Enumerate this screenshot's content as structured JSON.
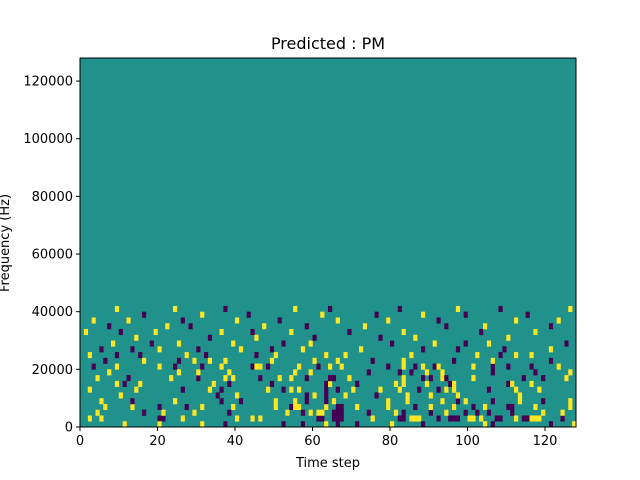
{
  "chart_data": {
    "type": "heatmap",
    "title": "Predicted : PM",
    "xlabel": "Time step",
    "ylabel": "Frequency (Hz)",
    "xlim": [
      0,
      128
    ],
    "ylim": [
      0,
      128000
    ],
    "x_ticks": [
      0,
      20,
      40,
      60,
      80,
      100,
      120
    ],
    "y_ticks": [
      0,
      20000,
      40000,
      60000,
      80000,
      100000,
      120000
    ],
    "n_time_steps": 128,
    "n_freq_bins": 64,
    "classes": [
      {
        "value": 0,
        "color": "#440154"
      },
      {
        "value": 1,
        "color": "#21918c"
      },
      {
        "value": 2,
        "color": "#fde725"
      }
    ],
    "background_value": 1,
    "cells": [
      [
        2,
        1,
        0
      ],
      [
        2,
        1,
        2
      ],
      [
        5,
        1,
        2
      ],
      [
        21,
        1,
        0
      ],
      [
        20,
        1,
        0
      ],
      [
        26,
        1,
        2
      ],
      [
        40,
        1,
        2
      ],
      [
        44,
        1,
        2
      ],
      [
        46,
        1,
        2
      ],
      [
        61,
        1,
        0
      ],
      [
        62,
        1,
        0
      ],
      [
        65,
        1,
        0
      ],
      [
        66,
        1,
        0
      ],
      [
        67,
        1,
        0
      ],
      [
        75,
        1,
        2
      ],
      [
        82,
        1,
        0
      ],
      [
        83,
        1,
        0
      ],
      [
        85,
        1,
        2
      ],
      [
        86,
        1,
        2
      ],
      [
        87,
        1,
        2
      ],
      [
        92,
        1,
        0
      ],
      [
        95,
        1,
        0
      ],
      [
        96,
        1,
        0
      ],
      [
        97,
        1,
        0
      ],
      [
        100,
        1,
        2
      ],
      [
        101,
        1,
        2
      ],
      [
        103,
        1,
        2
      ],
      [
        107,
        1,
        0
      ],
      [
        108,
        1,
        0
      ],
      [
        112,
        1,
        2
      ],
      [
        114,
        1,
        0
      ],
      [
        115,
        1,
        0
      ],
      [
        116,
        1,
        2
      ],
      [
        117,
        1,
        2
      ],
      [
        118,
        1,
        2
      ],
      [
        124,
        1,
        0
      ],
      [
        11,
        0,
        2
      ],
      [
        20,
        0,
        2
      ],
      [
        31,
        0,
        2
      ],
      [
        37,
        0,
        0
      ],
      [
        52,
        0,
        0
      ],
      [
        57,
        0,
        0
      ],
      [
        63,
        0,
        2
      ],
      [
        66,
        0,
        0
      ],
      [
        71,
        0,
        0
      ],
      [
        80,
        0,
        2
      ],
      [
        88,
        0,
        0
      ],
      [
        104,
        0,
        2
      ],
      [
        106,
        0,
        0
      ],
      [
        121,
        0,
        0
      ],
      [
        127,
        0,
        2
      ],
      [
        4,
        2,
        2
      ],
      [
        16,
        2,
        0
      ],
      [
        21,
        2,
        2
      ],
      [
        29,
        2,
        2
      ],
      [
        38,
        2,
        0
      ],
      [
        53,
        2,
        2
      ],
      [
        57,
        2,
        0
      ],
      [
        59,
        2,
        2
      ],
      [
        61,
        2,
        2
      ],
      [
        62,
        2,
        2
      ],
      [
        65,
        2,
        0
      ],
      [
        66,
        2,
        0
      ],
      [
        67,
        2,
        0
      ],
      [
        74,
        2,
        0
      ],
      [
        81,
        2,
        2
      ],
      [
        83,
        2,
        0
      ],
      [
        90,
        2,
        0
      ],
      [
        94,
        2,
        2
      ],
      [
        99,
        2,
        0
      ],
      [
        102,
        2,
        0
      ],
      [
        105,
        2,
        0
      ],
      [
        111,
        2,
        0
      ],
      [
        119,
        2,
        2
      ],
      [
        124,
        2,
        2
      ],
      [
        6,
        3,
        2
      ],
      [
        13,
        3,
        2
      ],
      [
        20,
        3,
        0
      ],
      [
        27,
        3,
        0
      ],
      [
        31,
        3,
        2
      ],
      [
        39,
        3,
        2
      ],
      [
        50,
        3,
        2
      ],
      [
        54,
        3,
        0
      ],
      [
        55,
        3,
        2
      ],
      [
        56,
        3,
        2
      ],
      [
        63,
        3,
        2
      ],
      [
        66,
        3,
        0
      ],
      [
        67,
        3,
        0
      ],
      [
        71,
        3,
        2
      ],
      [
        79,
        3,
        2
      ],
      [
        86,
        3,
        0
      ],
      [
        90,
        3,
        2
      ],
      [
        96,
        3,
        2
      ],
      [
        101,
        3,
        0
      ],
      [
        104,
        3,
        2
      ],
      [
        110,
        3,
        0
      ],
      [
        111,
        3,
        0
      ],
      [
        117,
        3,
        2
      ],
      [
        126,
        3,
        2
      ],
      [
        5,
        4,
        2
      ],
      [
        13,
        4,
        0
      ],
      [
        24,
        4,
        2
      ],
      [
        36,
        4,
        0
      ],
      [
        41,
        4,
        0
      ],
      [
        50,
        4,
        2
      ],
      [
        55,
        4,
        2
      ],
      [
        58,
        4,
        0
      ],
      [
        63,
        4,
        0
      ],
      [
        65,
        4,
        2
      ],
      [
        79,
        4,
        2
      ],
      [
        84,
        4,
        2
      ],
      [
        93,
        4,
        2
      ],
      [
        97,
        4,
        0
      ],
      [
        99,
        4,
        2
      ],
      [
        106,
        4,
        0
      ],
      [
        113,
        4,
        2
      ],
      [
        119,
        4,
        0
      ],
      [
        126,
        4,
        2
      ],
      [
        10,
        5,
        2
      ],
      [
        35,
        5,
        0
      ],
      [
        40,
        5,
        2
      ],
      [
        58,
        5,
        0
      ],
      [
        60,
        5,
        2
      ],
      [
        63,
        5,
        0
      ],
      [
        68,
        5,
        2
      ],
      [
        76,
        5,
        0
      ],
      [
        84,
        5,
        2
      ],
      [
        90,
        5,
        2
      ],
      [
        97,
        5,
        2
      ],
      [
        113,
        5,
        2
      ],
      [
        2,
        6,
        2
      ],
      [
        14,
        6,
        2
      ],
      [
        26,
        6,
        0
      ],
      [
        33,
        6,
        2
      ],
      [
        36,
        6,
        0
      ],
      [
        48,
        6,
        2
      ],
      [
        52,
        6,
        0
      ],
      [
        54,
        6,
        2
      ],
      [
        56,
        6,
        2
      ],
      [
        63,
        6,
        0
      ],
      [
        66,
        6,
        0
      ],
      [
        70,
        6,
        2
      ],
      [
        77,
        6,
        2
      ],
      [
        82,
        6,
        2
      ],
      [
        87,
        6,
        0
      ],
      [
        92,
        6,
        0
      ],
      [
        94,
        6,
        2
      ],
      [
        96,
        6,
        2
      ],
      [
        105,
        6,
        0
      ],
      [
        112,
        6,
        2
      ],
      [
        118,
        6,
        2
      ],
      [
        9,
        7,
        2
      ],
      [
        11,
        7,
        0
      ],
      [
        15,
        7,
        2
      ],
      [
        34,
        7,
        2
      ],
      [
        38,
        7,
        0
      ],
      [
        49,
        7,
        0
      ],
      [
        63,
        7,
        0
      ],
      [
        64,
        7,
        2
      ],
      [
        71,
        7,
        0
      ],
      [
        81,
        7,
        2
      ],
      [
        83,
        7,
        2
      ],
      [
        89,
        7,
        2
      ],
      [
        95,
        7,
        0
      ],
      [
        96,
        7,
        2
      ],
      [
        110,
        7,
        0
      ],
      [
        111,
        7,
        2
      ],
      [
        116,
        7,
        2
      ],
      [
        4,
        8,
        2
      ],
      [
        12,
        8,
        0
      ],
      [
        23,
        8,
        2
      ],
      [
        30,
        8,
        0
      ],
      [
        37,
        8,
        2
      ],
      [
        39,
        8,
        2
      ],
      [
        46,
        8,
        0
      ],
      [
        51,
        8,
        2
      ],
      [
        54,
        8,
        2
      ],
      [
        58,
        8,
        0
      ],
      [
        64,
        8,
        0
      ],
      [
        65,
        8,
        0
      ],
      [
        69,
        8,
        2
      ],
      [
        83,
        8,
        2
      ],
      [
        88,
        8,
        0
      ],
      [
        90,
        8,
        0
      ],
      [
        93,
        8,
        2
      ],
      [
        94,
        8,
        0
      ],
      [
        101,
        8,
        2
      ],
      [
        114,
        8,
        0
      ],
      [
        119,
        8,
        0
      ],
      [
        125,
        8,
        2
      ],
      [
        7,
        9,
        2
      ],
      [
        25,
        9,
        2
      ],
      [
        30,
        9,
        2
      ],
      [
        38,
        9,
        2
      ],
      [
        55,
        9,
        2
      ],
      [
        59,
        9,
        2
      ],
      [
        74,
        9,
        0
      ],
      [
        82,
        9,
        0
      ],
      [
        85,
        9,
        0
      ],
      [
        89,
        9,
        2
      ],
      [
        93,
        9,
        2
      ],
      [
        106,
        9,
        0
      ],
      [
        117,
        9,
        0
      ],
      [
        126,
        9,
        2
      ],
      [
        3,
        10,
        0
      ],
      [
        9,
        10,
        2
      ],
      [
        20,
        10,
        2
      ],
      [
        24,
        10,
        0
      ],
      [
        31,
        10,
        0
      ],
      [
        36,
        10,
        2
      ],
      [
        44,
        10,
        0
      ],
      [
        45,
        10,
        2
      ],
      [
        46,
        10,
        2
      ],
      [
        48,
        10,
        0
      ],
      [
        56,
        10,
        2
      ],
      [
        61,
        10,
        0
      ],
      [
        64,
        10,
        2
      ],
      [
        67,
        10,
        2
      ],
      [
        79,
        10,
        0
      ],
      [
        83,
        10,
        2
      ],
      [
        86,
        10,
        0
      ],
      [
        88,
        10,
        2
      ],
      [
        91,
        10,
        0
      ],
      [
        92,
        10,
        2
      ],
      [
        101,
        10,
        2
      ],
      [
        106,
        10,
        0
      ],
      [
        110,
        10,
        0
      ],
      [
        116,
        10,
        0
      ],
      [
        123,
        10,
        2
      ],
      [
        6,
        11,
        0
      ],
      [
        16,
        11,
        2
      ],
      [
        25,
        11,
        0
      ],
      [
        29,
        11,
        2
      ],
      [
        33,
        11,
        2
      ],
      [
        37,
        11,
        2
      ],
      [
        49,
        11,
        2
      ],
      [
        60,
        11,
        2
      ],
      [
        66,
        11,
        2
      ],
      [
        75,
        11,
        0
      ],
      [
        83,
        11,
        2
      ],
      [
        96,
        11,
        0
      ],
      [
        106,
        11,
        2
      ],
      [
        121,
        11,
        0
      ],
      [
        2,
        12,
        2
      ],
      [
        9,
        12,
        0
      ],
      [
        15,
        12,
        0
      ],
      [
        27,
        12,
        2
      ],
      [
        32,
        12,
        0
      ],
      [
        45,
        12,
        0
      ],
      [
        50,
        12,
        2
      ],
      [
        63,
        12,
        2
      ],
      [
        68,
        12,
        2
      ],
      [
        85,
        12,
        2
      ],
      [
        102,
        12,
        2
      ],
      [
        108,
        12,
        0
      ],
      [
        112,
        12,
        2
      ],
      [
        116,
        12,
        2
      ],
      [
        5,
        13,
        0
      ],
      [
        13,
        13,
        0
      ],
      [
        20,
        13,
        2
      ],
      [
        30,
        13,
        0
      ],
      [
        41,
        13,
        2
      ],
      [
        49,
        13,
        0
      ],
      [
        57,
        13,
        2
      ],
      [
        72,
        13,
        2
      ],
      [
        88,
        13,
        0
      ],
      [
        97,
        13,
        0
      ],
      [
        109,
        13,
        0
      ],
      [
        121,
        13,
        2
      ],
      [
        8,
        14,
        2
      ],
      [
        18,
        14,
        0
      ],
      [
        25,
        14,
        2
      ],
      [
        39,
        14,
        2
      ],
      [
        52,
        14,
        0
      ],
      [
        59,
        14,
        2
      ],
      [
        80,
        14,
        0
      ],
      [
        91,
        14,
        2
      ],
      [
        99,
        14,
        0
      ],
      [
        105,
        14,
        2
      ],
      [
        125,
        14,
        0
      ],
      [
        14,
        15,
        2
      ],
      [
        33,
        15,
        0
      ],
      [
        45,
        15,
        2
      ],
      [
        60,
        15,
        0
      ],
      [
        77,
        15,
        0
      ],
      [
        86,
        15,
        2
      ],
      [
        110,
        15,
        2
      ],
      [
        1,
        16,
        2
      ],
      [
        10,
        16,
        0
      ],
      [
        19,
        16,
        2
      ],
      [
        36,
        16,
        2
      ],
      [
        44,
        16,
        0
      ],
      [
        54,
        16,
        2
      ],
      [
        69,
        16,
        0
      ],
      [
        83,
        16,
        2
      ],
      [
        103,
        16,
        0
      ],
      [
        117,
        16,
        2
      ],
      [
        7,
        17,
        0
      ],
      [
        22,
        17,
        2
      ],
      [
        28,
        17,
        0
      ],
      [
        47,
        17,
        2
      ],
      [
        58,
        17,
        0
      ],
      [
        73,
        17,
        2
      ],
      [
        94,
        17,
        0
      ],
      [
        104,
        17,
        2
      ],
      [
        121,
        17,
        0
      ],
      [
        3,
        18,
        2
      ],
      [
        12,
        18,
        2
      ],
      [
        26,
        18,
        0
      ],
      [
        40,
        18,
        2
      ],
      [
        51,
        18,
        0
      ],
      [
        66,
        18,
        2
      ],
      [
        79,
        18,
        2
      ],
      [
        92,
        18,
        0
      ],
      [
        112,
        18,
        2
      ],
      [
        123,
        18,
        2
      ],
      [
        16,
        19,
        0
      ],
      [
        31,
        19,
        2
      ],
      [
        43,
        19,
        0
      ],
      [
        62,
        19,
        2
      ],
      [
        76,
        19,
        0
      ],
      [
        88,
        19,
        2
      ],
      [
        99,
        19,
        0
      ],
      [
        115,
        19,
        0
      ],
      [
        9,
        20,
        2
      ],
      [
        24,
        20,
        2
      ],
      [
        37,
        20,
        0
      ],
      [
        55,
        20,
        2
      ],
      [
        64,
        20,
        0
      ],
      [
        82,
        20,
        0
      ],
      [
        97,
        20,
        2
      ],
      [
        108,
        20,
        0
      ],
      [
        126,
        20,
        2
      ]
    ]
  }
}
